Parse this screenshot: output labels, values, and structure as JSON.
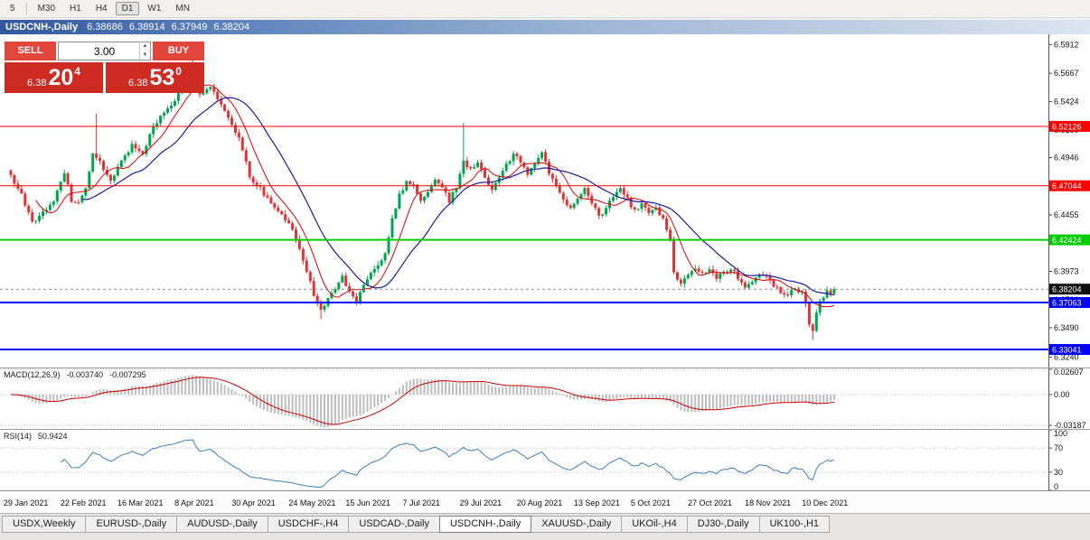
{
  "toolbar": {
    "timeframes": [
      "5",
      "M30",
      "H1",
      "H4",
      "D1",
      "W1",
      "MN"
    ],
    "active": "D1"
  },
  "caption": {
    "title": "USDCNH-,Daily",
    "open": "6.38686",
    "high": "6.38914",
    "low": "6.37949",
    "close": "6.38204"
  },
  "trade_panel": {
    "sell_label": "SELL",
    "buy_label": "BUY",
    "volume": "3.00",
    "sell_price": {
      "small": "6.38",
      "big": "20",
      "sup": "4"
    },
    "buy_price": {
      "small": "6.38",
      "big": "53",
      "sup": "0"
    }
  },
  "colors": {
    "bull": "#00A64F",
    "bear": "#E23434",
    "ma_fast": "#E00000",
    "ma_slow": "#1A1AA8",
    "macd_hist": "#BDBDBD",
    "macd_signal": "#CC0000",
    "rsi": "#3D7EBE"
  },
  "chart_data": {
    "type": "candlestick",
    "symbol": "USDCNH",
    "timeframe": "Daily",
    "candle_count": 232,
    "price_range": {
      "min": 6.315,
      "max": 6.6
    },
    "y_ticks": [
      6.5912,
      6.5667,
      6.5424,
      6.518,
      6.4946,
      6.4704,
      6.4455,
      6.4242,
      6.3973,
      6.373,
      6.349,
      6.324
    ],
    "x_labels": [
      "29 Jan 2021",
      "22 Feb 2021",
      "16 Mar 2021",
      "8 Apr 2021",
      "30 Apr 2021",
      "24 May 2021",
      "15 Jun 2021",
      "7 Jul 2021",
      "29 Jul 2021",
      "20 Aug 2021",
      "13 Sep 2021",
      "5 Oct 2021",
      "27 Oct 2021",
      "18 Nov 2021",
      "10 Dec 2021"
    ],
    "x_label_start": 3,
    "x_label_step": 16,
    "current_price": {
      "value": 6.38204,
      "label": "6.38204"
    },
    "levels": [
      {
        "price": 6.52126,
        "label": "6.52126",
        "color": "#FF0000",
        "width": 1
      },
      {
        "price": 6.47044,
        "label": "6.47044",
        "color": "#FF0000",
        "width": 1
      },
      {
        "price": 6.42424,
        "label": "6.42424",
        "color": "#00CC00",
        "width": 2
      },
      {
        "price": 6.37063,
        "label": "6.37063",
        "color": "#0000FF",
        "width": 2
      },
      {
        "price": 6.33041,
        "label": "6.33041",
        "color": "#0000FF",
        "width": 2
      }
    ],
    "close_anchors": [
      [
        0,
        6.478
      ],
      [
        3,
        6.462
      ],
      [
        6,
        6.438
      ],
      [
        9,
        6.448
      ],
      [
        12,
        6.458
      ],
      [
        15,
        6.482
      ],
      [
        17,
        6.458
      ],
      [
        19,
        6.455
      ],
      [
        21,
        6.468
      ],
      [
        23,
        6.498
      ],
      [
        25,
        6.49
      ],
      [
        28,
        6.474
      ],
      [
        31,
        6.492
      ],
      [
        34,
        6.505
      ],
      [
        37,
        6.498
      ],
      [
        40,
        6.522
      ],
      [
        43,
        6.532
      ],
      [
        46,
        6.545
      ],
      [
        49,
        6.562
      ],
      [
        51,
        6.566
      ],
      [
        53,
        6.548
      ],
      [
        56,
        6.556
      ],
      [
        58,
        6.546
      ],
      [
        61,
        6.528
      ],
      [
        64,
        6.512
      ],
      [
        67,
        6.478
      ],
      [
        70,
        6.468
      ],
      [
        73,
        6.455
      ],
      [
        76,
        6.446
      ],
      [
        79,
        6.432
      ],
      [
        81,
        6.415
      ],
      [
        83,
        6.398
      ],
      [
        85,
        6.378
      ],
      [
        87,
        6.366
      ],
      [
        89,
        6.373
      ],
      [
        91,
        6.384
      ],
      [
        93,
        6.392
      ],
      [
        95,
        6.381
      ],
      [
        97,
        6.372
      ],
      [
        99,
        6.386
      ],
      [
        101,
        6.396
      ],
      [
        103,
        6.401
      ],
      [
        105,
        6.413
      ],
      [
        107,
        6.442
      ],
      [
        109,
        6.462
      ],
      [
        111,
        6.474
      ],
      [
        113,
        6.47
      ],
      [
        115,
        6.456
      ],
      [
        117,
        6.466
      ],
      [
        119,
        6.476
      ],
      [
        121,
        6.468
      ],
      [
        123,
        6.458
      ],
      [
        125,
        6.47
      ],
      [
        127,
        6.492
      ],
      [
        129,
        6.484
      ],
      [
        131,
        6.49
      ],
      [
        133,
        6.479
      ],
      [
        135,
        6.466
      ],
      [
        137,
        6.477
      ],
      [
        139,
        6.488
      ],
      [
        141,
        6.498
      ],
      [
        143,
        6.49
      ],
      [
        145,
        6.481
      ],
      [
        147,
        6.489
      ],
      [
        149,
        6.498
      ],
      [
        151,
        6.481
      ],
      [
        153,
        6.469
      ],
      [
        155,
        6.459
      ],
      [
        157,
        6.451
      ],
      [
        159,
        6.46
      ],
      [
        161,
        6.469
      ],
      [
        163,
        6.455
      ],
      [
        165,
        6.444
      ],
      [
        167,
        6.452
      ],
      [
        169,
        6.461
      ],
      [
        171,
        6.468
      ],
      [
        173,
        6.459
      ],
      [
        175,
        6.449
      ],
      [
        177,
        6.454
      ],
      [
        179,
        6.447
      ],
      [
        181,
        6.451
      ],
      [
        183,
        6.441
      ],
      [
        185,
        6.424
      ],
      [
        186,
        6.396
      ],
      [
        188,
        6.385
      ],
      [
        190,
        6.394
      ],
      [
        192,
        6.401
      ],
      [
        194,
        6.395
      ],
      [
        196,
        6.4
      ],
      [
        198,
        6.392
      ],
      [
        200,
        6.397
      ],
      [
        202,
        6.4
      ],
      [
        204,
        6.392
      ],
      [
        206,
        6.384
      ],
      [
        208,
        6.39
      ],
      [
        210,
        6.396
      ],
      [
        212,
        6.392
      ],
      [
        214,
        6.386
      ],
      [
        216,
        6.38
      ],
      [
        218,
        6.376
      ],
      [
        220,
        6.384
      ],
      [
        222,
        6.378
      ],
      [
        223,
        6.368
      ],
      [
        224,
        6.352
      ],
      [
        225,
        6.345
      ],
      [
        226,
        6.36
      ],
      [
        227,
        6.37
      ],
      [
        228,
        6.375
      ],
      [
        229,
        6.381
      ],
      [
        230,
        6.377
      ],
      [
        231,
        6.38204
      ]
    ],
    "spikes": [
      {
        "i": 24,
        "high": 6.532
      },
      {
        "i": 51,
        "high": 6.578
      },
      {
        "i": 53,
        "high": 6.571
      },
      {
        "i": 87,
        "low": 6.3565
      },
      {
        "i": 127,
        "high": 6.5245
      },
      {
        "i": 225,
        "low": 6.3385
      }
    ],
    "indicators": {
      "macd": {
        "name": "MACD(12,26,9)",
        "main_value": "-0.003740",
        "signal_value": "-0.007295",
        "axis": [
          {
            "value": 0.02607,
            "label": "0.02607"
          },
          {
            "value": 0,
            "label": "0.00"
          },
          {
            "value": -0.03187,
            "label": "-0.03187"
          }
        ],
        "range": {
          "min": -0.0355,
          "max": 0.027
        }
      },
      "rsi": {
        "name": "RSI(14)",
        "value": "50.9424",
        "axis": [
          {
            "value": 100,
            "label": "100"
          },
          {
            "value": 70,
            "label": "70"
          },
          {
            "value": 30,
            "label": "30"
          },
          {
            "value": 0,
            "label": "0"
          }
        ],
        "dotted_levels": [
          70,
          30
        ]
      }
    }
  },
  "tabs": {
    "items": [
      "USDX,Weekly",
      "EURUSD-,Daily",
      "AUDUSD-,Daily",
      "USDCHF-,H4",
      "USDCAD-,Daily",
      "USDCNH-,Daily",
      "XAUUSD-,Daily",
      "UKOil-,H4",
      "DJ30-,Daily",
      "UK100-,H1"
    ],
    "active": "USDCNH-,Daily"
  }
}
